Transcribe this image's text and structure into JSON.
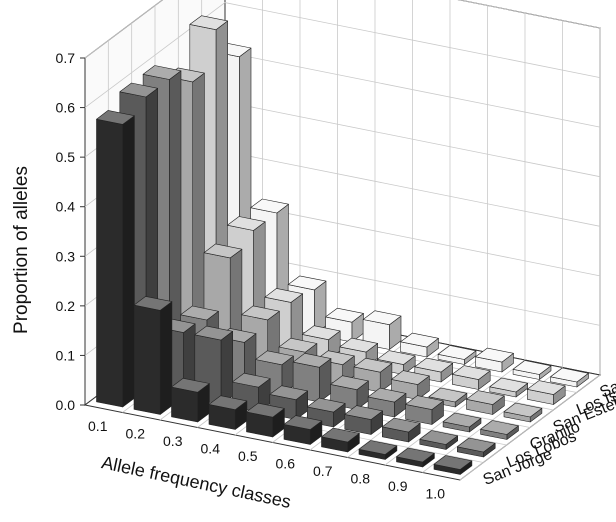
{
  "chart_data": {
    "type": "bar",
    "subtype": "3d-bar",
    "title": "",
    "xlabel": "Allele frequency classes",
    "ylabel": "Proportion of alleles",
    "ylim": [
      0,
      0.7
    ],
    "y_ticks": [
      "0.0",
      "0.1",
      "0.2",
      "0.3",
      "0.4",
      "0.5",
      "0.6",
      "0.7"
    ],
    "categories": [
      "0.1",
      "0.2",
      "0.3",
      "0.4",
      "0.5",
      "0.6",
      "0.7",
      "0.8",
      "0.9",
      "1.0"
    ],
    "grid": true,
    "legend_position": "right-depth-axis",
    "series": [
      {
        "name": "San Jorge",
        "color": "#2b2b2b",
        "values": [
          0.57,
          0.21,
          0.06,
          0.04,
          0.04,
          0.03,
          0.02,
          0.01,
          0.01,
          0.01
        ]
      },
      {
        "name": "Los Lobos",
        "color": "#5a5a5a",
        "values": [
          0.59,
          0.13,
          0.13,
          0.05,
          0.04,
          0.03,
          0.03,
          0.02,
          0.01,
          0.01
        ]
      },
      {
        "name": "Granito",
        "color": "#808080",
        "values": [
          0.59,
          0.12,
          0.09,
          0.06,
          0.07,
          0.04,
          0.03,
          0.03,
          0.01,
          0.01
        ]
      },
      {
        "name": "San Esteban",
        "color": "#a8a8a8",
        "values": [
          0.55,
          0.21,
          0.1,
          0.05,
          0.04,
          0.04,
          0.03,
          0.01,
          0.02,
          0.01
        ]
      },
      {
        "name": "Los Islotes",
        "color": "#cfcfcf",
        "values": [
          0.62,
          0.23,
          0.1,
          0.04,
          0.03,
          0.02,
          0.02,
          0.02,
          0.01,
          0.02
        ]
      },
      {
        "name": "San Benito",
        "color": "#f4f4f4",
        "values": [
          0.53,
          0.23,
          0.09,
          0.04,
          0.05,
          0.02,
          0.01,
          0.02,
          0.01,
          0.01
        ]
      }
    ]
  }
}
